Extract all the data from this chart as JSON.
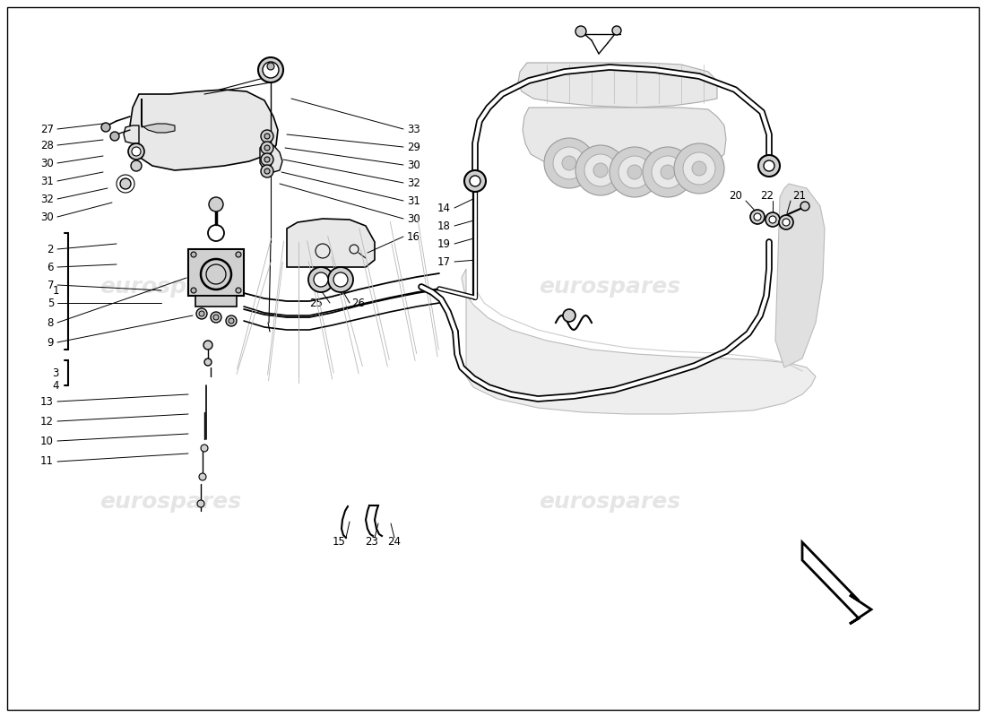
{
  "bg": "#ffffff",
  "lc": "#000000",
  "gray1": "#d0d0d0",
  "gray2": "#e8e8e8",
  "gray3": "#b8b8b8",
  "wm_color": "#cccccc",
  "wm_text": "eurospares",
  "fig_w": 11.0,
  "fig_h": 8.0,
  "dpi": 100
}
